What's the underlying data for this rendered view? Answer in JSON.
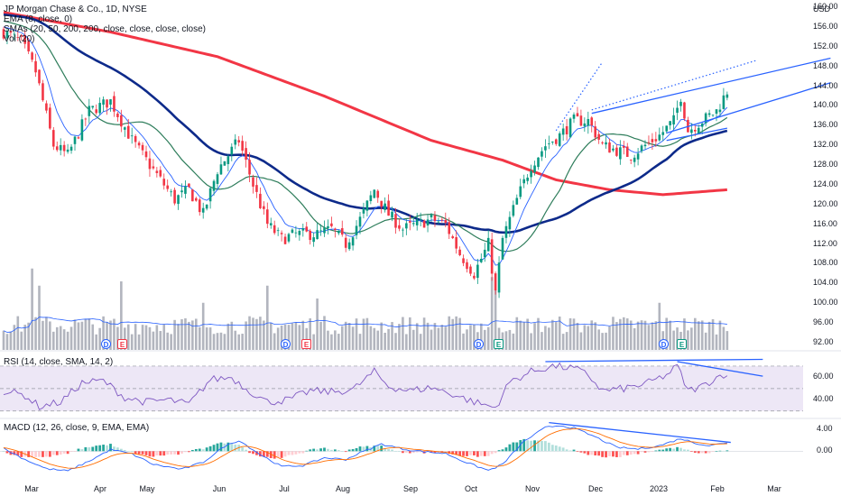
{
  "header": {
    "symbol_line": "JP Morgan Chase & Co., 1D, NYSE",
    "ema_line": "EMA (8, close, 0)",
    "sma_line": "SMAs (20, 50, 200, 200, close, close, close, close)",
    "vol_line": "Vol (20)"
  },
  "rsi_label": "RSI (14, close, SMA, 14, 2)",
  "macd_label": "MACD (12, 26, close, 9, EMA, EMA)",
  "currency_label": "USD",
  "events": [
    {
      "kind": "dividend",
      "text": "D"
    },
    {
      "kind": "earnings",
      "text": "E"
    },
    {
      "kind": "dividend",
      "text": "D"
    },
    {
      "kind": "earnings",
      "text": "E"
    },
    {
      "kind": "dividend",
      "text": "D"
    },
    {
      "kind": "earnings",
      "text": "E"
    },
    {
      "kind": "dividend",
      "text": "D"
    },
    {
      "kind": "earnings",
      "text": "E"
    }
  ],
  "colors": {
    "up": "#089981",
    "down": "#f23645",
    "sma200": "#f23645",
    "sma50": "#0d2a8a",
    "sma20": "#2e7d5b",
    "ema8": "#2962ff",
    "volume": "#b2b5be",
    "vol_ma": "#2962ff",
    "rsi": "#7e57c2",
    "rsi_band": "#ede7f6",
    "macd": "#2962ff",
    "signal": "#ff6d00",
    "trendline": "#2962ff"
  },
  "chart_data": [
    {
      "type": "candlestick",
      "title": "JP Morgan Chase & Co., 1D, NYSE",
      "y_ticks": [
        160,
        156,
        152,
        148,
        144,
        140,
        136,
        132,
        128,
        124,
        120,
        116,
        112,
        108,
        104,
        100,
        96,
        92
      ],
      "ylim": [
        90.5,
        161.5
      ],
      "x_ticks": [
        "Mar",
        "Apr",
        "May",
        "Jun",
        "Jul",
        "Aug",
        "Sep",
        "Oct",
        "Nov",
        "Dec",
        "2023",
        "Feb",
        "Mar"
      ],
      "close_anchors": [
        {
          "d": 0,
          "v": 155
        },
        {
          "d": 5,
          "v": 153
        },
        {
          "d": 9,
          "v": 147
        },
        {
          "d": 14,
          "v": 132
        },
        {
          "d": 18,
          "v": 130
        },
        {
          "d": 24,
          "v": 139
        },
        {
          "d": 30,
          "v": 141
        },
        {
          "d": 36,
          "v": 133
        },
        {
          "d": 42,
          "v": 127
        },
        {
          "d": 48,
          "v": 121
        },
        {
          "d": 52,
          "v": 123
        },
        {
          "d": 56,
          "v": 118
        },
        {
          "d": 60,
          "v": 127
        },
        {
          "d": 66,
          "v": 133
        },
        {
          "d": 70,
          "v": 124
        },
        {
          "d": 74,
          "v": 116
        },
        {
          "d": 78,
          "v": 113
        },
        {
          "d": 82,
          "v": 114
        },
        {
          "d": 88,
          "v": 114
        },
        {
          "d": 92,
          "v": 115
        },
        {
          "d": 96,
          "v": 112
        },
        {
          "d": 100,
          "v": 117
        },
        {
          "d": 104,
          "v": 123
        },
        {
          "d": 108,
          "v": 118
        },
        {
          "d": 112,
          "v": 115
        },
        {
          "d": 116,
          "v": 116
        },
        {
          "d": 120,
          "v": 117
        },
        {
          "d": 124,
          "v": 116
        },
        {
          "d": 128,
          "v": 110
        },
        {
          "d": 132,
          "v": 106
        },
        {
          "d": 136,
          "v": 112
        },
        {
          "d": 138,
          "v": 102
        },
        {
          "d": 140,
          "v": 113
        },
        {
          "d": 144,
          "v": 121
        },
        {
          "d": 148,
          "v": 128
        },
        {
          "d": 152,
          "v": 132
        },
        {
          "d": 156,
          "v": 134
        },
        {
          "d": 160,
          "v": 137
        },
        {
          "d": 164,
          "v": 137
        },
        {
          "d": 168,
          "v": 132
        },
        {
          "d": 172,
          "v": 131
        },
        {
          "d": 176,
          "v": 130
        },
        {
          "d": 180,
          "v": 132
        },
        {
          "d": 184,
          "v": 134
        },
        {
          "d": 188,
          "v": 137
        },
        {
          "d": 190,
          "v": 142
        },
        {
          "d": 192,
          "v": 135
        },
        {
          "d": 196,
          "v": 137
        },
        {
          "d": 200,
          "v": 139
        },
        {
          "d": 203,
          "v": 143
        }
      ],
      "series": [
        {
          "name": "EMA (8, close, 0)",
          "line": "ema8"
        },
        {
          "name": "SMA 20",
          "line": "sma20"
        },
        {
          "name": "SMA 50",
          "line": "sma50"
        },
        {
          "name": "SMA 200",
          "line": "sma200",
          "anchors": [
            {
              "d": 0,
              "v": 159
            },
            {
              "d": 30,
              "v": 155
            },
            {
              "d": 60,
              "v": 150
            },
            {
              "d": 90,
              "v": 142
            },
            {
              "d": 120,
              "v": 133
            },
            {
              "d": 140,
              "v": 129
            },
            {
              "d": 155,
              "v": 125
            },
            {
              "d": 170,
              "v": 123
            },
            {
              "d": 185,
              "v": 122
            },
            {
              "d": 203,
              "v": 123
            }
          ]
        }
      ]
    },
    {
      "type": "bar",
      "title": "Vol (20)",
      "note": "volume histogram; relative heights",
      "spikes": [
        {
          "d": 8,
          "rel": 0.95
        },
        {
          "d": 10,
          "rel": 0.75
        },
        {
          "d": 33,
          "rel": 0.8
        },
        {
          "d": 56,
          "rel": 0.55
        },
        {
          "d": 74,
          "rel": 0.75
        },
        {
          "d": 88,
          "rel": 0.6
        },
        {
          "d": 137,
          "rel": 0.85
        },
        {
          "d": 138,
          "rel": 0.7
        },
        {
          "d": 184,
          "rel": 0.55
        }
      ]
    },
    {
      "type": "line",
      "title": "RSI (14, close, SMA, 14, 2)",
      "y_ticks": [
        60,
        40
      ],
      "ylim": [
        25,
        82
      ],
      "bands": [
        70,
        50,
        30
      ],
      "anchors": [
        {
          "d": 0,
          "v": 48
        },
        {
          "d": 6,
          "v": 44
        },
        {
          "d": 10,
          "v": 34
        },
        {
          "d": 16,
          "v": 38
        },
        {
          "d": 22,
          "v": 55
        },
        {
          "d": 28,
          "v": 57
        },
        {
          "d": 34,
          "v": 42
        },
        {
          "d": 40,
          "v": 38
        },
        {
          "d": 46,
          "v": 40
        },
        {
          "d": 52,
          "v": 36
        },
        {
          "d": 58,
          "v": 58
        },
        {
          "d": 64,
          "v": 60
        },
        {
          "d": 68,
          "v": 50
        },
        {
          "d": 74,
          "v": 38
        },
        {
          "d": 80,
          "v": 40
        },
        {
          "d": 86,
          "v": 48
        },
        {
          "d": 92,
          "v": 47
        },
        {
          "d": 98,
          "v": 49
        },
        {
          "d": 104,
          "v": 65
        },
        {
          "d": 108,
          "v": 52
        },
        {
          "d": 114,
          "v": 48
        },
        {
          "d": 120,
          "v": 51
        },
        {
          "d": 126,
          "v": 45
        },
        {
          "d": 132,
          "v": 38
        },
        {
          "d": 138,
          "v": 33
        },
        {
          "d": 142,
          "v": 56
        },
        {
          "d": 148,
          "v": 65
        },
        {
          "d": 154,
          "v": 70
        },
        {
          "d": 160,
          "v": 68
        },
        {
          "d": 164,
          "v": 62
        },
        {
          "d": 168,
          "v": 48
        },
        {
          "d": 174,
          "v": 50
        },
        {
          "d": 180,
          "v": 54
        },
        {
          "d": 186,
          "v": 62
        },
        {
          "d": 189,
          "v": 70
        },
        {
          "d": 192,
          "v": 48
        },
        {
          "d": 196,
          "v": 52
        },
        {
          "d": 200,
          "v": 60
        },
        {
          "d": 203,
          "v": 64
        }
      ]
    },
    {
      "type": "line",
      "title": "MACD (12, 26, close, 9, EMA, EMA)",
      "y_ticks": [
        4.0,
        0.0
      ],
      "ylim": [
        -5.2,
        5.8
      ],
      "macd_anchors": [
        {
          "d": 0,
          "v": 0.5
        },
        {
          "d": 6,
          "v": -1.5
        },
        {
          "d": 12,
          "v": -3.2
        },
        {
          "d": 18,
          "v": -3.6
        },
        {
          "d": 24,
          "v": -1.8
        },
        {
          "d": 30,
          "v": 0.3
        },
        {
          "d": 36,
          "v": -0.5
        },
        {
          "d": 42,
          "v": -2.4
        },
        {
          "d": 50,
          "v": -3.3
        },
        {
          "d": 56,
          "v": -2.0
        },
        {
          "d": 62,
          "v": 0.9
        },
        {
          "d": 66,
          "v": 2.0
        },
        {
          "d": 72,
          "v": -0.6
        },
        {
          "d": 78,
          "v": -2.8
        },
        {
          "d": 84,
          "v": -2.6
        },
        {
          "d": 90,
          "v": -1.2
        },
        {
          "d": 96,
          "v": -1.5
        },
        {
          "d": 100,
          "v": -0.3
        },
        {
          "d": 106,
          "v": 1.3
        },
        {
          "d": 112,
          "v": 0.4
        },
        {
          "d": 118,
          "v": -0.1
        },
        {
          "d": 124,
          "v": -0.4
        },
        {
          "d": 130,
          "v": -2.1
        },
        {
          "d": 136,
          "v": -3.5
        },
        {
          "d": 140,
          "v": -2.4
        },
        {
          "d": 146,
          "v": 1.8
        },
        {
          "d": 152,
          "v": 4.3
        },
        {
          "d": 156,
          "v": 4.7
        },
        {
          "d": 160,
          "v": 4.2
        },
        {
          "d": 166,
          "v": 2.6
        },
        {
          "d": 172,
          "v": 0.7
        },
        {
          "d": 178,
          "v": 0.4
        },
        {
          "d": 184,
          "v": 1.0
        },
        {
          "d": 190,
          "v": 2.3
        },
        {
          "d": 194,
          "v": 1.5
        },
        {
          "d": 198,
          "v": 1.0
        },
        {
          "d": 203,
          "v": 1.6
        }
      ]
    }
  ],
  "trendlines": [
    {
      "type": "solid",
      "pane": "price",
      "from": {
        "d": 165,
        "v": 138.5
      },
      "to": {
        "d": 232,
        "v": 149.7
      }
    },
    {
      "type": "solid",
      "pane": "price",
      "from": {
        "d": 186,
        "v": 134.5
      },
      "to": {
        "d": 232,
        "v": 144.7
      }
    },
    {
      "type": "solid",
      "pane": "price",
      "from": {
        "d": 186,
        "v": 133
      },
      "to": {
        "d": 203,
        "v": 135.5
      }
    },
    {
      "type": "dotted",
      "pane": "price",
      "from": {
        "d": 165,
        "v": 139.2
      },
      "to": {
        "d": 211,
        "v": 149.2
      }
    },
    {
      "type": "dotted",
      "pane": "price",
      "from": {
        "d": 155,
        "v": 135.0
      },
      "to": {
        "d": 168,
        "v": 148.9
      }
    },
    {
      "type": "solid",
      "pane": "rsi",
      "from": {
        "d": 152,
        "v": 74
      },
      "to": {
        "d": 213,
        "v": 76
      }
    },
    {
      "type": "solid",
      "pane": "rsi",
      "from": {
        "d": 189,
        "v": 74
      },
      "to": {
        "d": 213,
        "v": 61
      }
    },
    {
      "type": "solid",
      "pane": "macd",
      "from": {
        "d": 153,
        "v": 5.2
      },
      "to": {
        "d": 204,
        "v": 1.6
      }
    }
  ]
}
